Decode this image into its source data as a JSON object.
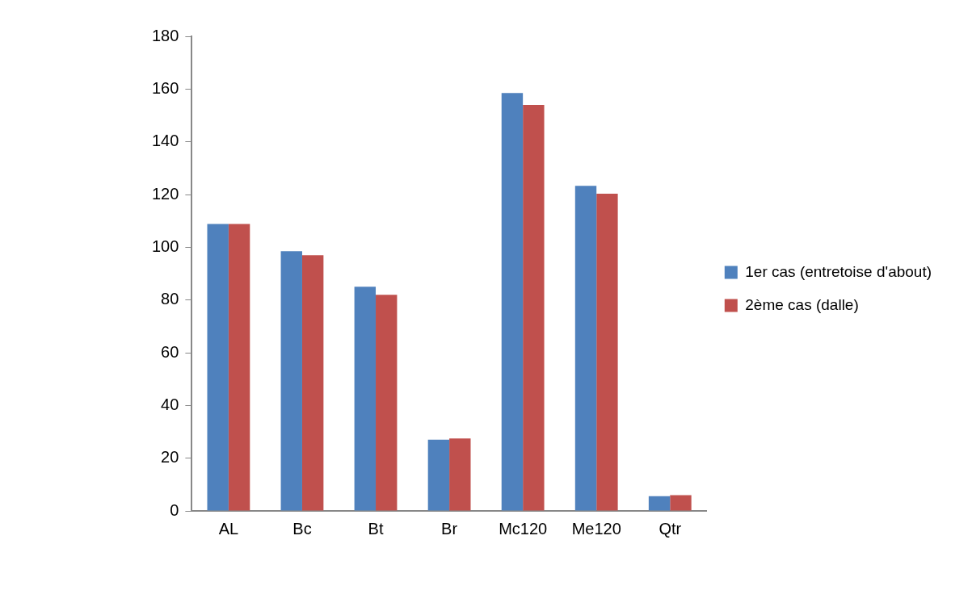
{
  "chart_data": {
    "type": "bar",
    "categories": [
      "AL",
      "Bc",
      "Bt",
      "Br",
      "Mc120",
      "Me120",
      "Qtr"
    ],
    "series": [
      {
        "name": "1er cas (entretoise d'about)",
        "color": "#4f81bd",
        "values": [
          108.8,
          98.5,
          85,
          27,
          158.5,
          123.3,
          5.6
        ]
      },
      {
        "name": "2ème cas (dalle)",
        "color": "#c0504d",
        "values": [
          108.8,
          97,
          82,
          27.5,
          154,
          120.3,
          6
        ]
      }
    ],
    "ylim": [
      0,
      180
    ],
    "yticks": [
      0,
      20,
      40,
      60,
      80,
      100,
      120,
      140,
      160,
      180
    ],
    "grid": false,
    "legend": "right"
  }
}
